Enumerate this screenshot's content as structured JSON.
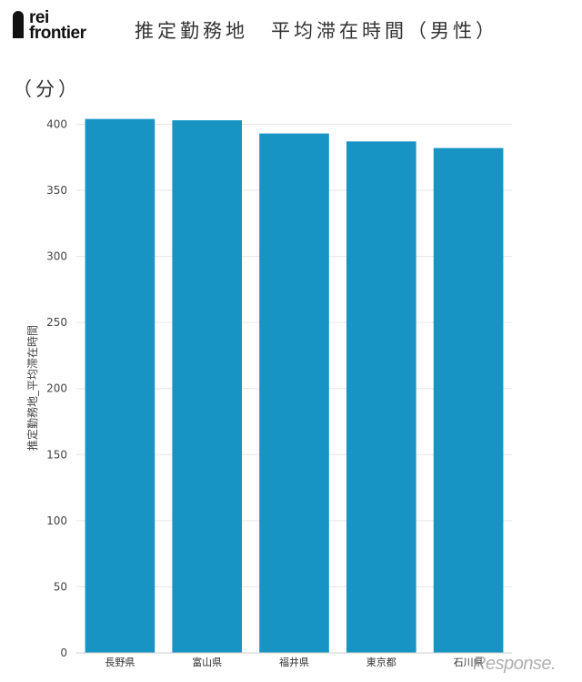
{
  "header": {
    "logo_line1": "rei",
    "logo_line2": "frontier",
    "title": "推定勤務地　平均滞在時間（男性）",
    "unit": "（分）"
  },
  "watermark": "Response.",
  "colors": {
    "bar": "#1794c4",
    "grid": "#e6e6e6",
    "axis": "#555555"
  },
  "chart_data": {
    "type": "bar",
    "categories": [
      "長野県",
      "富山県",
      "福井県",
      "東京都",
      "石川県"
    ],
    "values": [
      404,
      403,
      393,
      387,
      382
    ],
    "ylabel": "推定勤務地_平均滞在時間",
    "ylim": [
      0,
      400
    ],
    "yticks": [
      0,
      50,
      100,
      150,
      200,
      250,
      300,
      350,
      400
    ],
    "grid": true
  }
}
